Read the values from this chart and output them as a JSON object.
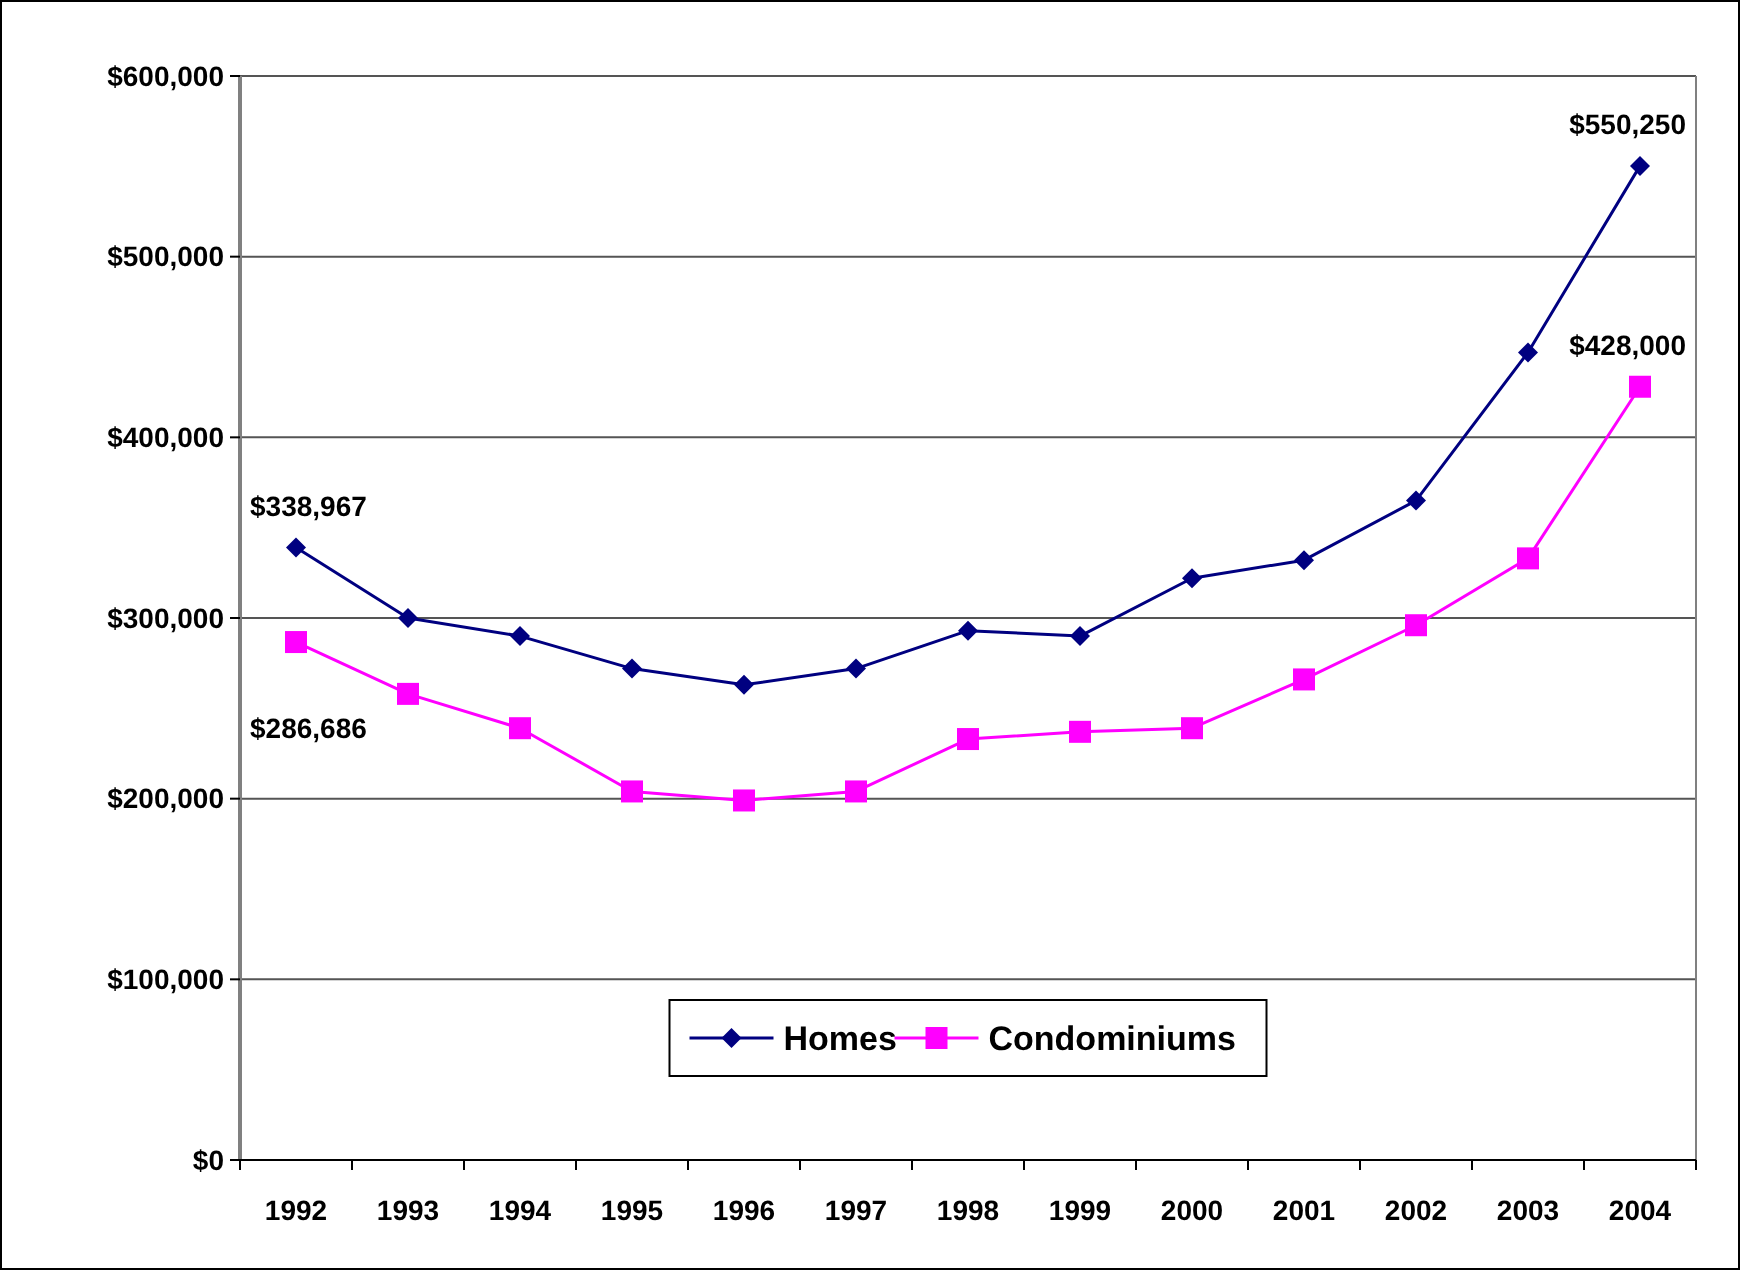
{
  "chart_data": {
    "type": "line",
    "categories": [
      "1992",
      "1993",
      "1994",
      "1995",
      "1996",
      "1997",
      "1998",
      "1999",
      "2000",
      "2001",
      "2002",
      "2003",
      "2004"
    ],
    "series": [
      {
        "name": "Homes",
        "color": "#000080",
        "marker": "diamond",
        "values": [
          338967,
          300000,
          290000,
          272000,
          263000,
          272000,
          293000,
          290000,
          322000,
          332000,
          365000,
          447000,
          550250
        ]
      },
      {
        "name": "Condominiums",
        "color": "#ff00ff",
        "marker": "square",
        "values": [
          286686,
          258000,
          239000,
          204000,
          199000,
          204000,
          233000,
          237000,
          239000,
          266000,
          296000,
          333000,
          428000
        ]
      }
    ],
    "ylim": [
      0,
      600000
    ],
    "yticks": [
      {
        "value": 0,
        "label": "$0"
      },
      {
        "value": 100000,
        "label": "$100,000"
      },
      {
        "value": 200000,
        "label": "$200,000"
      },
      {
        "value": 300000,
        "label": "$300,000"
      },
      {
        "value": 400000,
        "label": "$400,000"
      },
      {
        "value": 500000,
        "label": "$500,000"
      },
      {
        "value": 600000,
        "label": "$600,000"
      }
    ],
    "grid": "y",
    "legend": "bottom",
    "annotations": [
      {
        "text": "$338,967",
        "x": "1992",
        "y": 338967
      },
      {
        "text": "$286,686",
        "x": "1992",
        "y": 286686
      },
      {
        "text": "$550,250",
        "x": "2004",
        "y": 550250
      },
      {
        "text": "$428,000",
        "x": "2004",
        "y": 428000
      }
    ]
  }
}
